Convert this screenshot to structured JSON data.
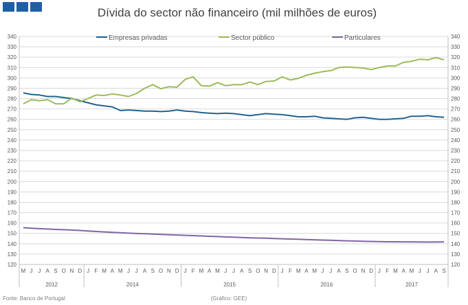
{
  "logo": {
    "icon": "institution-logo-icon",
    "color": "#1f5fa6"
  },
  "chart_data": {
    "type": "line",
    "title": "Dívida do sector não financeiro (mil milhões de euros)",
    "ylim": [
      120,
      340
    ],
    "y_step": 10,
    "grid": true,
    "legend_position": "top",
    "months": [
      "M",
      "J",
      "J",
      "A",
      "S",
      "O",
      "N",
      "D",
      "J",
      "F",
      "M",
      "A",
      "M",
      "J",
      "J",
      "A",
      "S",
      "O",
      "N",
      "D",
      "J",
      "F",
      "M",
      "A",
      "M",
      "J",
      "J",
      "A",
      "S",
      "O",
      "N",
      "D",
      "J",
      "F",
      "M",
      "A",
      "M",
      "J",
      "J",
      "A",
      "S",
      "O",
      "N",
      "D",
      "J",
      "F",
      "M",
      "A",
      "M",
      "J",
      "J",
      "A",
      "S"
    ],
    "years": [
      {
        "label": "2012",
        "start": 0,
        "end": 7
      },
      {
        "label": "2014",
        "start": 8,
        "end": 19
      },
      {
        "label": "2015",
        "start": 20,
        "end": 31
      },
      {
        "label": "2016",
        "start": 32,
        "end": 43
      },
      {
        "label": "2017",
        "start": 44,
        "end": 52
      }
    ],
    "series": [
      {
        "name": "Empresas privadas",
        "color": "#1f6391",
        "values": [
          285.5,
          284,
          283.5,
          282,
          282,
          281,
          280,
          278,
          276,
          274,
          273,
          272,
          268.5,
          269,
          268.5,
          268,
          268,
          267.5,
          268,
          269,
          268,
          267.5,
          266.5,
          266,
          265.5,
          266,
          265.5,
          264.5,
          263.5,
          264.5,
          265.5,
          265,
          264.5,
          263.5,
          262.5,
          262.5,
          263,
          261.5,
          261,
          260.5,
          260,
          261.5,
          262,
          261,
          260,
          260,
          260.5,
          261,
          263,
          263,
          263.5,
          262.5,
          262
        ]
      },
      {
        "name": "Sector público",
        "color": "#9bbb59",
        "values": [
          275,
          279,
          278,
          279,
          275,
          275,
          280.5,
          277,
          280,
          283.5,
          283,
          284.5,
          283.5,
          282,
          285,
          290,
          293.5,
          289.5,
          291.5,
          291,
          298.5,
          301,
          292.5,
          292,
          295.5,
          292.5,
          293.5,
          293.5,
          296,
          293.5,
          296.5,
          297,
          301,
          298,
          299.5,
          302.5,
          304.5,
          306,
          307,
          310,
          310.5,
          310,
          309.5,
          308,
          310,
          311.5,
          311.5,
          315,
          316,
          318,
          317.5,
          319.5,
          317.5
        ]
      },
      {
        "name": "Particulares",
        "color": "#8064a2",
        "values": [
          155.5,
          155,
          154.5,
          154.2,
          153.8,
          153.5,
          153.2,
          152.8,
          152.3,
          151.8,
          151.4,
          151,
          150.6,
          150.2,
          149.9,
          149.6,
          149.3,
          149,
          148.7,
          148.4,
          148.1,
          147.8,
          147.5,
          147.2,
          146.9,
          146.6,
          146.3,
          146,
          145.7,
          145.5,
          145.3,
          145,
          144.8,
          144.5,
          144.3,
          144,
          143.8,
          143.5,
          143.3,
          143,
          142.8,
          142.6,
          142.4,
          142.2,
          142,
          141.9,
          141.9,
          141.8,
          141.8,
          141.7,
          141.6,
          141.7,
          141.8
        ]
      }
    ]
  },
  "footer": {
    "source": "Fonte: Banco de Portugal",
    "credit": "(Gráfico: GEE)"
  }
}
